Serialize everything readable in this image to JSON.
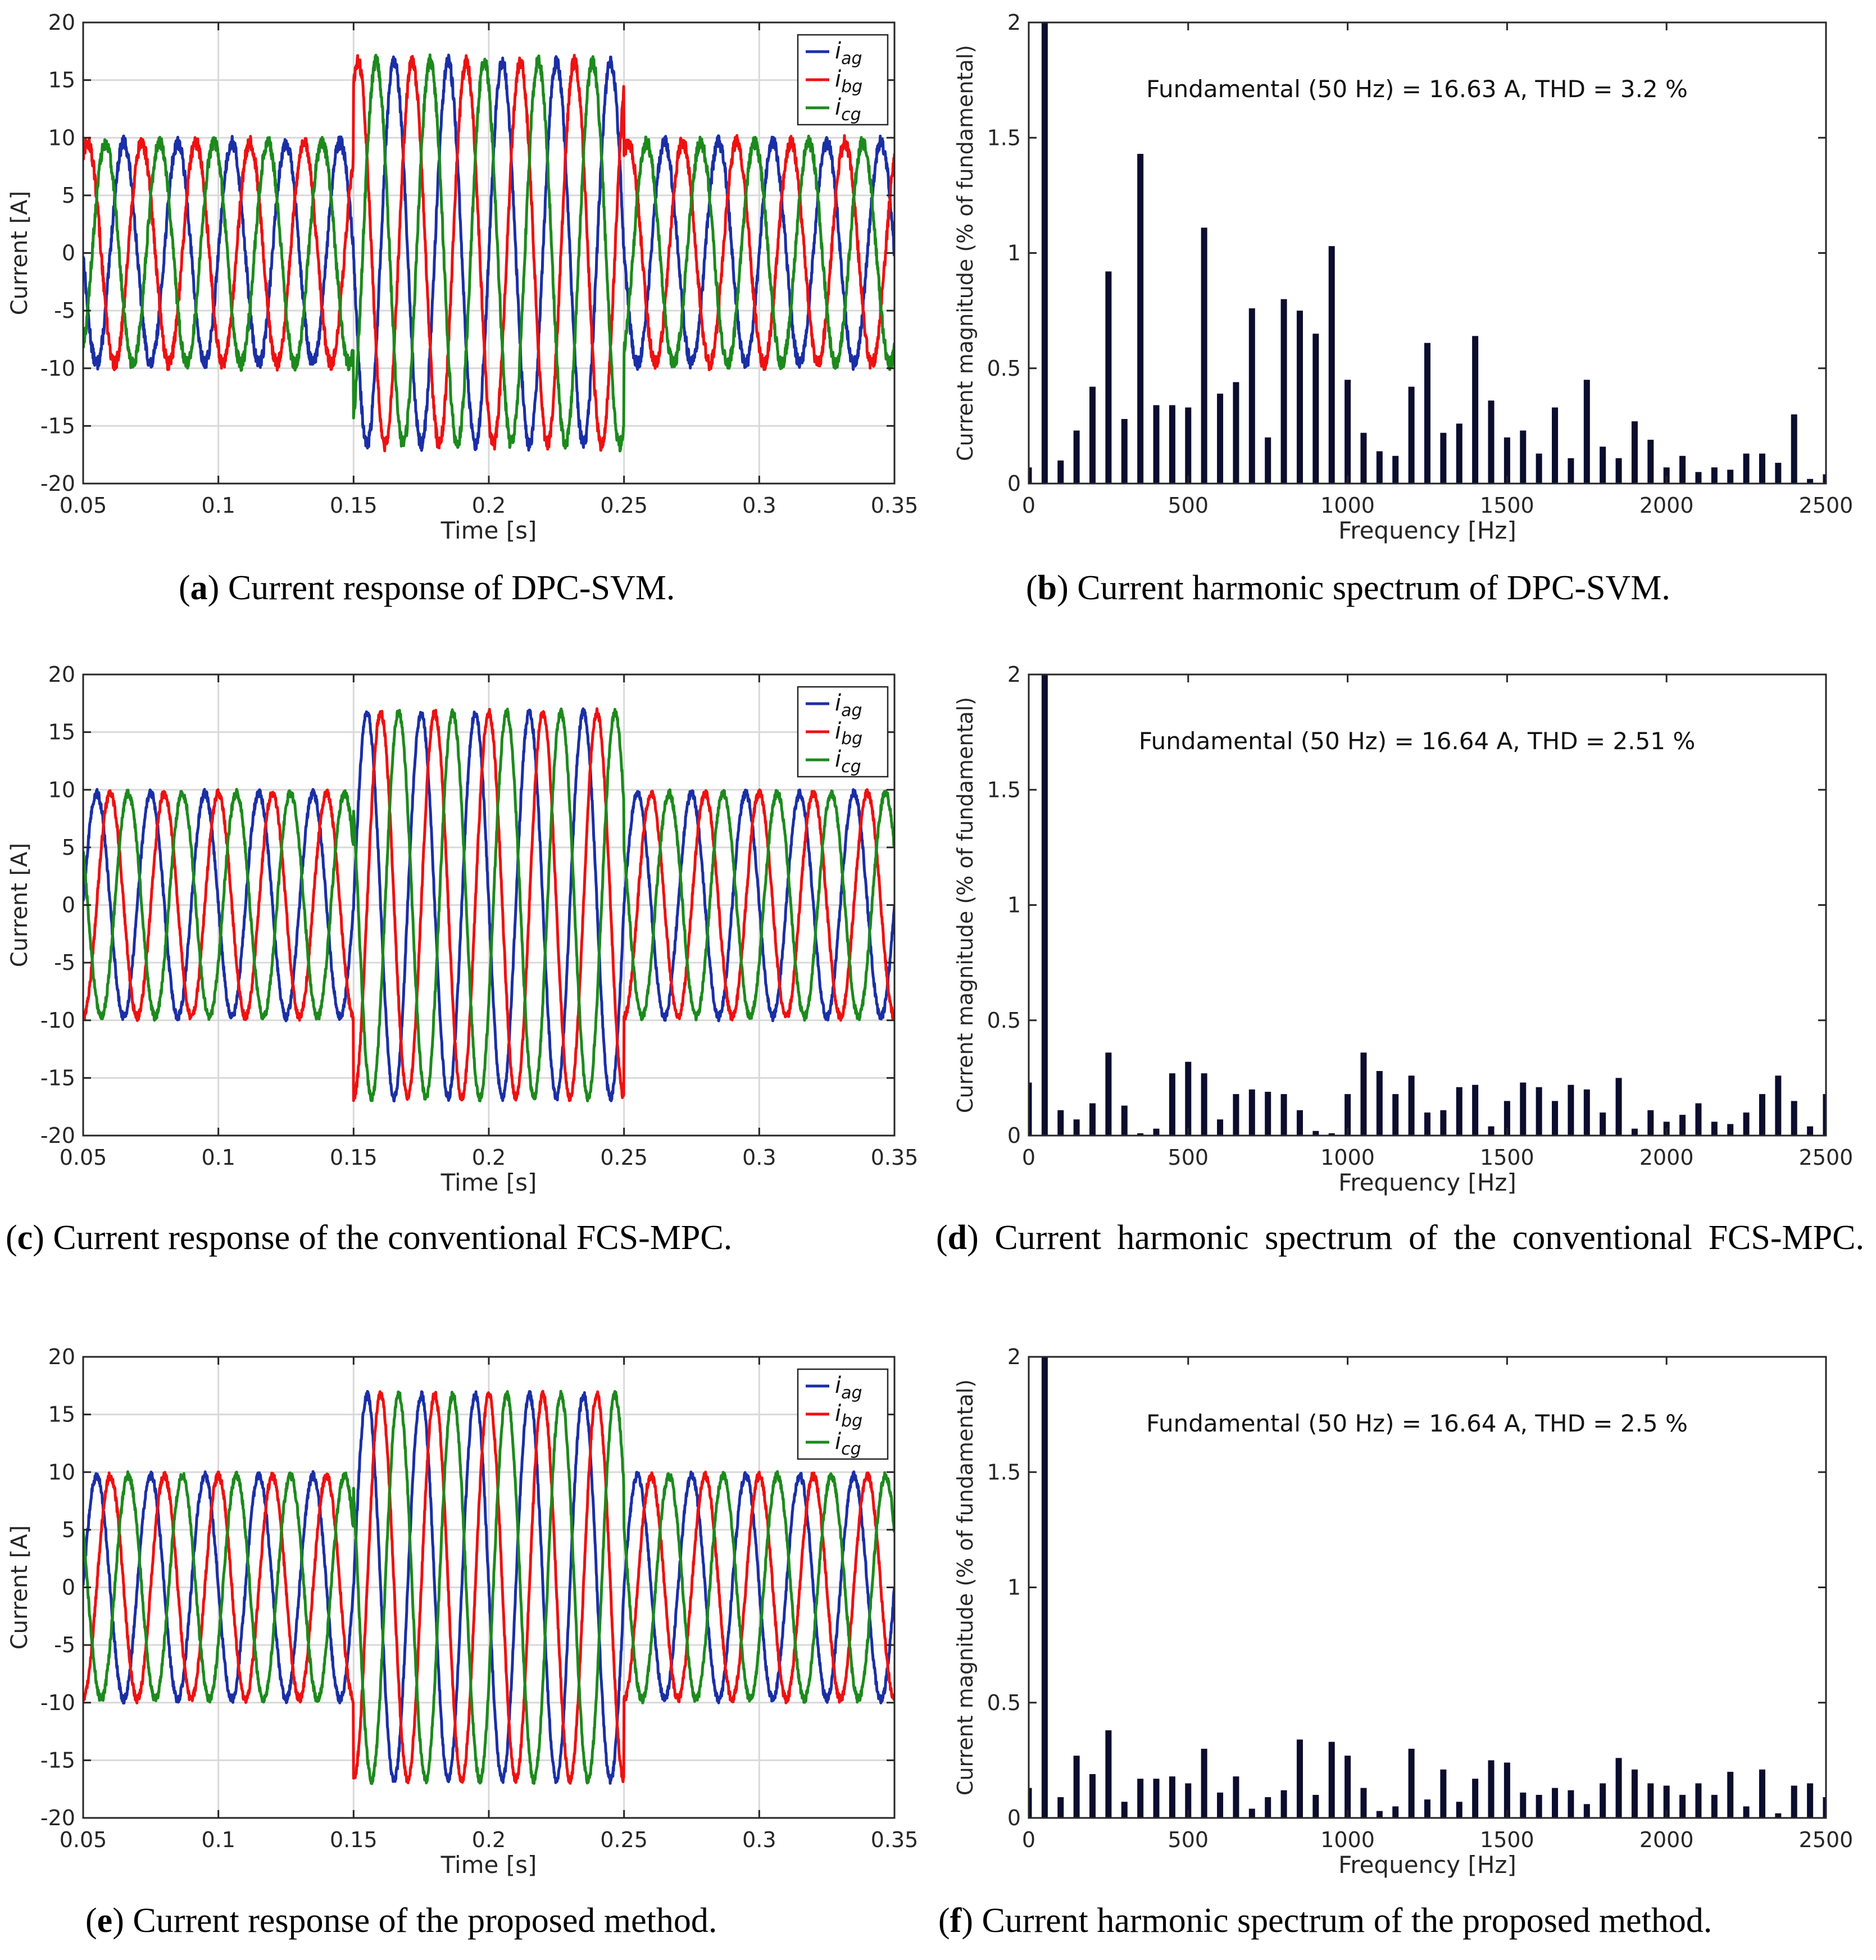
{
  "figure": {
    "panels": [
      {
        "id": "a",
        "caption_label": "a",
        "caption_text": "Current response of DPC-SVM.",
        "chart_data": {
          "type": "line",
          "title": "",
          "xlabel": "Time [s]",
          "ylabel": "Current [A]",
          "xlim": [
            0.05,
            0.35
          ],
          "ylim": [
            -20,
            20
          ],
          "xticks": [
            0.05,
            0.1,
            0.15,
            0.2,
            0.25,
            0.3,
            0.35
          ],
          "xtick_labels": [
            "0.05",
            "0.1",
            "0.15",
            "0.2",
            "0.25",
            "0.3",
            "0.35"
          ],
          "yticks": [
            -20,
            -15,
            -10,
            -5,
            0,
            5,
            10,
            15,
            20
          ],
          "ytick_labels": [
            "-20",
            "-15",
            "-10",
            "-5",
            "0",
            "5",
            "10",
            "15",
            "20"
          ],
          "grid": true,
          "legend_position": "top-right",
          "frequency_hz": 50,
          "step_times_s": [
            0.15,
            0.25
          ],
          "amplitudes_a": [
            9.6,
            16.6,
            9.6
          ],
          "ripple_a": 0.6,
          "series": [
            {
              "name": "i_ag",
              "base": "i",
              "sub": "ag",
              "color": "#1a2fa6",
              "phase_deg": 0
            },
            {
              "name": "i_bg",
              "base": "i",
              "sub": "bg",
              "color": "#ee1111",
              "phase_deg": -120
            },
            {
              "name": "i_cg",
              "base": "i",
              "sub": "cg",
              "color": "#1c8a1c",
              "phase_deg": 120
            }
          ]
        }
      },
      {
        "id": "b",
        "caption_label": "b",
        "caption_text": "Current harmonic spectrum of DPC-SVM.",
        "chart_data": {
          "type": "bar",
          "title": "",
          "annotation": "Fundamental (50 Hz) = 16.63 A, THD = 3.2 %",
          "xlabel": "Frequency [Hz]",
          "ylabel": "Current magnitude (% of fundamental)",
          "xlim": [
            0,
            2500
          ],
          "ylim": [
            0,
            2
          ],
          "xticks": [
            0,
            500,
            1000,
            1500,
            2000,
            2500
          ],
          "xtick_labels": [
            "0",
            "500",
            "1000",
            "1500",
            "2000",
            "2500"
          ],
          "yticks": [
            0,
            0.5,
            1,
            1.5,
            2
          ],
          "ytick_labels": [
            "0",
            "0.5",
            "1",
            "1.5",
            "2"
          ],
          "grid": false,
          "bar_color": "#0c0c2e",
          "frequency_step_hz": 50,
          "values": [
            0.07,
            2.0,
            0.1,
            0.23,
            0.42,
            0.92,
            0.28,
            1.43,
            0.34,
            0.34,
            0.33,
            1.11,
            0.39,
            0.44,
            0.76,
            0.2,
            0.8,
            0.75,
            0.65,
            1.03,
            0.45,
            0.22,
            0.14,
            0.12,
            0.42,
            0.61,
            0.22,
            0.26,
            0.64,
            0.36,
            0.2,
            0.23,
            0.13,
            0.33,
            0.11,
            0.45,
            0.16,
            0.11,
            0.27,
            0.19,
            0.07,
            0.12,
            0.05,
            0.07,
            0.06,
            0.13,
            0.13,
            0.09,
            0.3,
            0.02,
            0.04
          ]
        }
      },
      {
        "id": "c",
        "caption_label": "c",
        "caption_text": "Current response of the conventional FCS-MPC.",
        "chart_data": {
          "type": "line",
          "title": "",
          "xlabel": "Time [s]",
          "ylabel": "Current [A]",
          "xlim": [
            0.05,
            0.35
          ],
          "ylim": [
            -20,
            20
          ],
          "xticks": [
            0.05,
            0.1,
            0.15,
            0.2,
            0.25,
            0.3,
            0.35
          ],
          "xtick_labels": [
            "0.05",
            "0.1",
            "0.15",
            "0.2",
            "0.25",
            "0.3",
            "0.35"
          ],
          "yticks": [
            -20,
            -15,
            -10,
            -5,
            0,
            5,
            10,
            15,
            20
          ],
          "ytick_labels": [
            "-20",
            "-15",
            "-10",
            "-5",
            "0",
            "5",
            "10",
            "15",
            "20"
          ],
          "grid": true,
          "legend_position": "top-right",
          "frequency_hz": 50,
          "step_times_s": [
            0.15,
            0.25
          ],
          "amplitudes_a": [
            9.7,
            16.7,
            9.7
          ],
          "ripple_a": 0.35,
          "series": [
            {
              "name": "i_ag",
              "base": "i",
              "sub": "ag",
              "color": "#1a2fa6",
              "phase_deg": 180
            },
            {
              "name": "i_bg",
              "base": "i",
              "sub": "bg",
              "color": "#ee1111",
              "phase_deg": 90
            },
            {
              "name": "i_cg",
              "base": "i",
              "sub": "cg",
              "color": "#1c8a1c",
              "phase_deg": -30
            }
          ]
        }
      },
      {
        "id": "d",
        "caption_label": "d",
        "caption_text": "Current harmonic spectrum of the conventional FCS-MPC.",
        "chart_data": {
          "type": "bar",
          "title": "",
          "annotation": "Fundamental (50 Hz) = 16.64 A, THD = 2.51 %",
          "xlabel": "Frequency [Hz]",
          "ylabel": "Current magnitude (% of fundamental)",
          "xlim": [
            0,
            2500
          ],
          "ylim": [
            0,
            2
          ],
          "xticks": [
            0,
            500,
            1000,
            1500,
            2000,
            2500
          ],
          "xtick_labels": [
            "0",
            "500",
            "1000",
            "1500",
            "2000",
            "2500"
          ],
          "yticks": [
            0,
            0.5,
            1,
            1.5,
            2
          ],
          "ytick_labels": [
            "0",
            "0.5",
            "1",
            "1.5",
            "2"
          ],
          "grid": false,
          "bar_color": "#0c0c2e",
          "frequency_step_hz": 50,
          "values": [
            0.23,
            2.0,
            0.11,
            0.07,
            0.14,
            0.36,
            0.13,
            0.01,
            0.03,
            0.27,
            0.32,
            0.27,
            0.07,
            0.18,
            0.2,
            0.19,
            0.18,
            0.11,
            0.02,
            0.01,
            0.18,
            0.36,
            0.28,
            0.18,
            0.26,
            0.1,
            0.11,
            0.21,
            0.22,
            0.04,
            0.15,
            0.23,
            0.21,
            0.15,
            0.22,
            0.2,
            0.1,
            0.25,
            0.03,
            0.11,
            0.06,
            0.09,
            0.14,
            0.06,
            0.05,
            0.1,
            0.18,
            0.26,
            0.15,
            0.04,
            0.18
          ]
        }
      },
      {
        "id": "e",
        "caption_label": "e",
        "caption_text": "Current response of the proposed method.",
        "chart_data": {
          "type": "line",
          "title": "",
          "xlabel": "Time [s]",
          "ylabel": "Current [A]",
          "xlim": [
            0.05,
            0.35
          ],
          "ylim": [
            -20,
            20
          ],
          "xticks": [
            0.05,
            0.1,
            0.15,
            0.2,
            0.25,
            0.3,
            0.35
          ],
          "xtick_labels": [
            "0.05",
            "0.1",
            "0.15",
            "0.2",
            "0.25",
            "0.3",
            "0.35"
          ],
          "yticks": [
            -20,
            -15,
            -10,
            -5,
            0,
            5,
            10,
            15,
            20
          ],
          "ytick_labels": [
            "-20",
            "-15",
            "-10",
            "-5",
            "0",
            "5",
            "10",
            "15",
            "20"
          ],
          "grid": true,
          "legend_position": "top-right",
          "frequency_hz": 50,
          "step_times_s": [
            0.15,
            0.25
          ],
          "amplitudes_a": [
            9.7,
            16.7,
            9.7
          ],
          "ripple_a": 0.35,
          "series": [
            {
              "name": "i_ag",
              "base": "i",
              "sub": "ag",
              "color": "#1a2fa6",
              "phase_deg": 180
            },
            {
              "name": "i_bg",
              "base": "i",
              "sub": "bg",
              "color": "#ee1111",
              "phase_deg": 90
            },
            {
              "name": "i_cg",
              "base": "i",
              "sub": "cg",
              "color": "#1c8a1c",
              "phase_deg": -30
            }
          ]
        }
      },
      {
        "id": "f",
        "caption_label": "f",
        "caption_text": "Current harmonic spectrum of the proposed method.",
        "chart_data": {
          "type": "bar",
          "title": "",
          "annotation": "Fundamental (50 Hz) = 16.64 A, THD = 2.5 %",
          "xlabel": "Frequency [Hz]",
          "ylabel": "Current magnitude (% of fundamental)",
          "xlim": [
            0,
            2500
          ],
          "ylim": [
            0,
            2
          ],
          "xticks": [
            0,
            500,
            1000,
            1500,
            2000,
            2500
          ],
          "xtick_labels": [
            "0",
            "500",
            "1000",
            "1500",
            "2000",
            "2500"
          ],
          "yticks": [
            0,
            0.5,
            1,
            1.5,
            2
          ],
          "ytick_labels": [
            "0",
            "0.5",
            "1",
            "1.5",
            "2"
          ],
          "grid": false,
          "bar_color": "#0c0c2e",
          "frequency_step_hz": 50,
          "values": [
            0.13,
            2.0,
            0.09,
            0.27,
            0.19,
            0.38,
            0.07,
            0.17,
            0.17,
            0.18,
            0.15,
            0.3,
            0.11,
            0.18,
            0.04,
            0.09,
            0.12,
            0.34,
            0.1,
            0.33,
            0.27,
            0.13,
            0.03,
            0.05,
            0.3,
            0.08,
            0.21,
            0.07,
            0.17,
            0.25,
            0.24,
            0.11,
            0.1,
            0.13,
            0.12,
            0.06,
            0.15,
            0.26,
            0.21,
            0.15,
            0.14,
            0.1,
            0.15,
            0.1,
            0.2,
            0.05,
            0.21,
            0.02,
            0.14,
            0.15,
            0.09
          ]
        }
      }
    ]
  }
}
